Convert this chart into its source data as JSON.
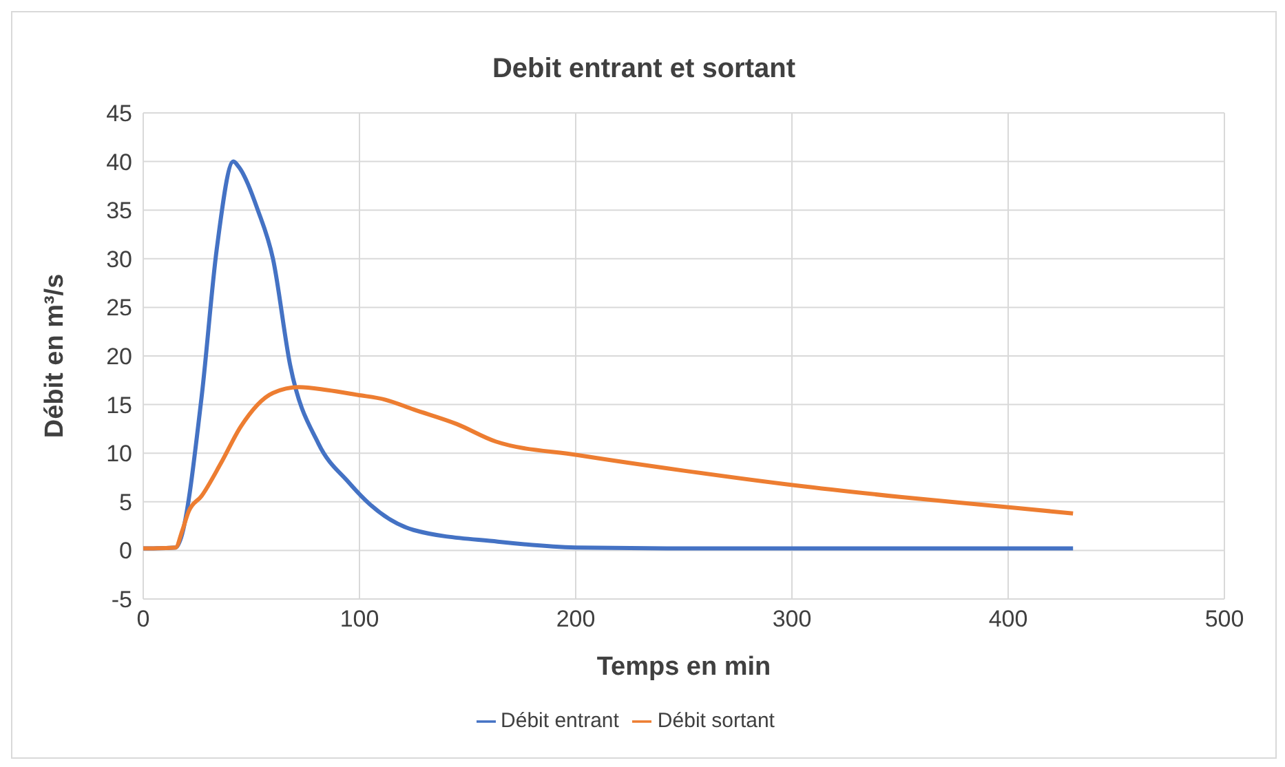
{
  "chart_data": {
    "type": "line",
    "title": "Debit entrant et sortant",
    "xlabel": "Temps en min",
    "ylabel": "Débit en m³/s",
    "xlim": [
      0,
      500
    ],
    "xticks": [
      0,
      100,
      200,
      300,
      400,
      500
    ],
    "ylim": [
      -5,
      45
    ],
    "yticks": [
      -5,
      0,
      5,
      10,
      15,
      20,
      25,
      30,
      35,
      40,
      45
    ],
    "grid": true,
    "legend": "bottom",
    "marker": "none",
    "line_style": "solid",
    "series": [
      {
        "name": "Débit entrant",
        "color": "#4472c4",
        "x": [
          0,
          15,
          17,
          27,
          34,
          41.7,
          44,
          53,
          60,
          68,
          81,
          95,
          105,
          125,
          164,
          200,
          250,
          300,
          350,
          400,
          430
        ],
        "values": [
          0.2,
          0.3,
          1,
          15.8,
          31,
          40,
          39.5,
          35,
          30,
          19,
          11,
          7,
          4.7,
          2.1,
          0.9,
          0.3,
          0.2,
          0.2,
          0.2,
          0.2,
          0.2
        ]
      },
      {
        "name": "Débit sortant",
        "color": "#ed7d31",
        "x": [
          0,
          15,
          18,
          21,
          27,
          36,
          45,
          60,
          72,
          85,
          99,
          112,
          125,
          145,
          163,
          201,
          250,
          301,
          350,
          402,
          430
        ],
        "values": [
          0.2,
          0.3,
          2,
          4,
          5.6,
          9,
          12.7,
          16.2,
          16.8,
          16.5,
          16,
          15.5,
          14.5,
          13,
          11.2,
          9.8,
          8.2,
          6.7,
          5.5,
          4.4,
          3.8
        ]
      }
    ]
  }
}
